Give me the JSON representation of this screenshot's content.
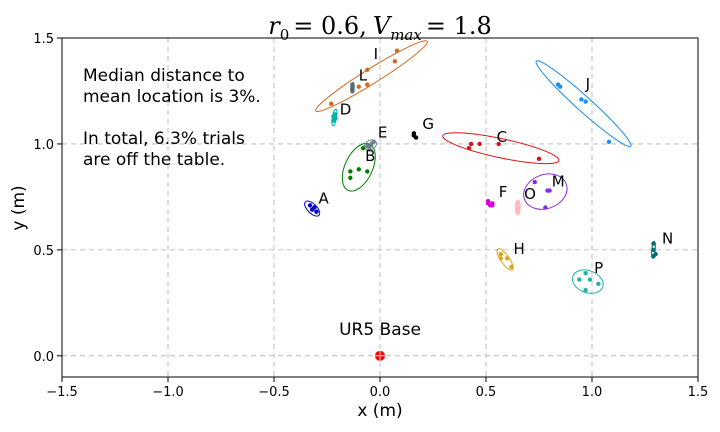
{
  "chart_data": {
    "type": "scatter",
    "title": {
      "r_symbol": "r",
      "r_sub": "0",
      "r_value": "= 0.6,",
      "v_symbol": "V",
      "v_sub": "max",
      "v_value": "= 1.8"
    },
    "xlabel": "x (m)",
    "ylabel": "y (m)",
    "xlim": [
      -1.5,
      1.5
    ],
    "ylim": [
      -0.1,
      1.5
    ],
    "xticks": [
      -1.5,
      -1.0,
      -0.5,
      0.0,
      0.5,
      1.0,
      1.5
    ],
    "xtick_labels": [
      "−1.5",
      "−1.0",
      "−0.5",
      "0.0",
      "0.5",
      "1.0",
      "1.5"
    ],
    "yticks": [
      0.0,
      0.5,
      1.0,
      1.5
    ],
    "ytick_labels": [
      "0.0",
      "0.5",
      "1.0",
      "1.5"
    ],
    "grid": true,
    "annotation_lines": [
      "Median distance to",
      "mean location is 3%.",
      "",
      "In total, 6.3% trials",
      "are off the table."
    ],
    "base": {
      "label": "UR5 Base",
      "x": 0.0,
      "y": 0.0,
      "color": "#ff0000"
    },
    "series": [
      {
        "name": "A",
        "color": "#0000cc",
        "points": [
          [
            -0.33,
            0.71
          ],
          [
            -0.32,
            0.69
          ],
          [
            -0.31,
            0.7
          ],
          [
            -0.3,
            0.68
          ]
        ],
        "ellipse": {
          "cx": -0.32,
          "cy": 0.695,
          "rx": 0.045,
          "ry": 0.022,
          "angle_deg": -45
        },
        "label_at": [
          -0.29,
          0.72
        ]
      },
      {
        "name": "B",
        "color": "#008000",
        "points": [
          [
            -0.14,
            0.87
          ],
          [
            -0.14,
            0.84
          ],
          [
            -0.1,
            0.88
          ],
          [
            -0.06,
            0.87
          ],
          [
            -0.08,
            0.98
          ],
          [
            -0.05,
            0.99
          ]
        ],
        "ellipse": {
          "cx": -0.1,
          "cy": 0.89,
          "rx": 0.12,
          "ry": 0.065,
          "angle_deg": 65
        },
        "label_at": [
          -0.07,
          0.92
        ]
      },
      {
        "name": "C",
        "color": "#dd1111",
        "points": [
          [
            0.42,
            0.98
          ],
          [
            0.43,
            1.0
          ],
          [
            0.47,
            1.0
          ],
          [
            0.56,
            1.0
          ],
          [
            0.75,
            0.93
          ]
        ],
        "ellipse": {
          "cx": 0.57,
          "cy": 0.98,
          "rx": 0.28,
          "ry": 0.045,
          "angle_deg": -12
        },
        "label_at": [
          0.55,
          1.01
        ]
      },
      {
        "name": "D",
        "color": "#00b3a4",
        "points": [
          [
            -0.22,
            1.11
          ],
          [
            -0.21,
            1.12
          ],
          [
            -0.21,
            1.14
          ],
          [
            -0.22,
            1.13
          ]
        ],
        "ellipse": {
          "cx": -0.215,
          "cy": 1.125,
          "rx": 0.04,
          "ry": 0.01,
          "angle_deg": 80
        },
        "label_at": [
          -0.19,
          1.14
        ]
      },
      {
        "name": "E",
        "color": "#708090",
        "points": [
          [
            -0.06,
            0.99
          ],
          [
            -0.04,
            1.0
          ],
          [
            -0.03,
            1.01
          ],
          [
            -0.05,
            0.98
          ]
        ],
        "ellipse": {
          "cx": -0.045,
          "cy": 0.995,
          "rx": 0.03,
          "ry": 0.022,
          "angle_deg": 30
        },
        "label_at": [
          -0.01,
          1.03
        ]
      },
      {
        "name": "F",
        "color": "#dd00dd",
        "points": [
          [
            0.51,
            0.72
          ],
          [
            0.52,
            0.71
          ],
          [
            0.53,
            0.72
          ],
          [
            0.51,
            0.73
          ],
          [
            0.53,
            0.71
          ]
        ],
        "ellipse": null,
        "label_at": [
          0.56,
          0.75
        ]
      },
      {
        "name": "G",
        "color": "#000000",
        "points": [
          [
            0.16,
            1.04
          ],
          [
            0.16,
            1.05
          ],
          [
            0.17,
            1.03
          ],
          [
            0.16,
            1.04
          ]
        ],
        "ellipse": null,
        "label_at": [
          0.2,
          1.07
        ]
      },
      {
        "name": "H",
        "color": "#daa520",
        "points": [
          [
            0.57,
            0.48
          ],
          [
            0.57,
            0.46
          ],
          [
            0.6,
            0.46
          ],
          [
            0.62,
            0.42
          ]
        ],
        "ellipse": {
          "cx": 0.59,
          "cy": 0.455,
          "rx": 0.06,
          "ry": 0.02,
          "angle_deg": -55
        },
        "label_at": [
          0.63,
          0.48
        ]
      },
      {
        "name": "I",
        "color": "#d2691e",
        "points": [
          [
            -0.23,
            1.19
          ],
          [
            -0.1,
            1.27
          ],
          [
            -0.06,
            1.35
          ],
          [
            -0.06,
            1.28
          ],
          [
            0.07,
            1.39
          ],
          [
            0.08,
            1.44
          ]
        ],
        "ellipse": {
          "cx": -0.04,
          "cy": 1.32,
          "rx": 0.31,
          "ry": 0.035,
          "angle_deg": 32
        },
        "label_at": [
          -0.03,
          1.4
        ]
      },
      {
        "name": "J",
        "color": "#1f8ff0",
        "points": [
          [
            0.84,
            1.28
          ],
          [
            0.85,
            1.27
          ],
          [
            0.95,
            1.21
          ],
          [
            0.97,
            1.2
          ],
          [
            1.08,
            1.01
          ]
        ],
        "ellipse": {
          "cx": 0.96,
          "cy": 1.19,
          "rx": 0.3,
          "ry": 0.035,
          "angle_deg": -42
        },
        "label_at": [
          0.97,
          1.26
        ]
      },
      {
        "name": "L",
        "color": "#556b7a",
        "points": [
          [
            -0.13,
            1.26
          ],
          [
            -0.13,
            1.25
          ],
          [
            -0.13,
            1.27
          ],
          [
            -0.13,
            1.28
          ]
        ],
        "ellipse": {
          "cx": -0.13,
          "cy": 1.265,
          "rx": 0.025,
          "ry": 0.008,
          "angle_deg": 85
        },
        "label_at": [
          -0.1,
          1.3
        ]
      },
      {
        "name": "M",
        "color": "#8a2be2",
        "points": [
          [
            0.73,
            0.82
          ],
          [
            0.79,
            0.78
          ],
          [
            0.8,
            0.78
          ],
          [
            0.78,
            0.7
          ]
        ],
        "ellipse": {
          "cx": 0.78,
          "cy": 0.775,
          "rx": 0.105,
          "ry": 0.08,
          "angle_deg": 20
        },
        "label_at": [
          0.81,
          0.8
        ]
      },
      {
        "name": "N",
        "color": "#007070",
        "points": [
          [
            1.29,
            0.53
          ],
          [
            1.29,
            0.5
          ],
          [
            1.3,
            0.48
          ],
          [
            1.29,
            0.47
          ]
        ],
        "ellipse": {
          "cx": 1.29,
          "cy": 0.5,
          "rx": 0.04,
          "ry": 0.008,
          "angle_deg": 85
        },
        "label_at": [
          1.33,
          0.53
        ]
      },
      {
        "name": "O",
        "color": "#ffb6c1",
        "points": [
          [
            0.65,
            0.7
          ],
          [
            0.65,
            0.69
          ],
          [
            0.65,
            0.72
          ],
          [
            0.65,
            0.68
          ]
        ],
        "ellipse": {
          "cx": 0.65,
          "cy": 0.7,
          "rx": 0.035,
          "ry": 0.012,
          "angle_deg": 88
        },
        "label_at": [
          0.68,
          0.74
        ]
      },
      {
        "name": "P",
        "color": "#20b2aa",
        "points": [
          [
            0.97,
            0.39
          ],
          [
            0.99,
            0.36
          ],
          [
            1.03,
            0.34
          ],
          [
            0.94,
            0.36
          ],
          [
            0.97,
            0.31
          ]
        ],
        "ellipse": {
          "cx": 0.98,
          "cy": 0.35,
          "rx": 0.075,
          "ry": 0.052,
          "angle_deg": -20
        },
        "label_at": [
          1.01,
          0.39
        ]
      }
    ]
  }
}
